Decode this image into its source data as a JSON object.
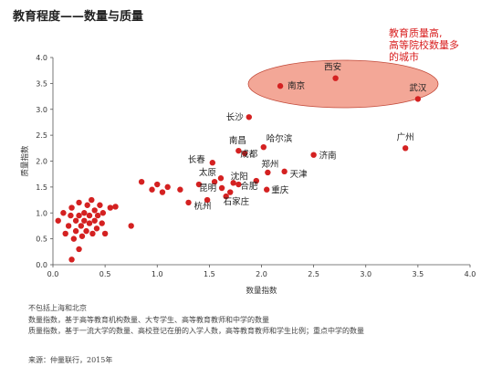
{
  "title": "教育程度——数量与质量",
  "notes": [
    "不包括上海和北京",
    "数量指数，基于高等教育机构数量、大专学生、高等教育教师和中学的数量",
    "质量指数，基于一流大学的数量、高校登记在册的入学人数，高等教育教师和学生比例；重点中学的数量"
  ],
  "source": "来源：仲量联行，2015年",
  "colors": {
    "dot": "#d42121",
    "highlight_fill": "#f3a797",
    "highlight_stroke": "#c24a3a",
    "highlight_text": "#d81e1e"
  },
  "chart_data": {
    "type": "scatter",
    "title": "教育程度——数量与质量",
    "xlabel": "数量指数",
    "ylabel": "质量指数",
    "xlim": [
      0,
      4.0
    ],
    "ylim": [
      0,
      4.0
    ],
    "xticks": [
      "0.0",
      "0.5",
      "1.0",
      "1.5",
      "2.0",
      "2.5",
      "3.0",
      "3.5",
      "4.0"
    ],
    "yticks": [
      "0.0",
      "0.5",
      "1.0",
      "1.5",
      "2.0",
      "2.5",
      "3.0",
      "3.5",
      "4.0"
    ],
    "grid": false,
    "highlight_note": [
      "教育质量高,",
      "高等院校数量多",
      "的城市"
    ],
    "labeled_points": [
      {
        "label": "南京",
        "x": 2.18,
        "y": 3.45
      },
      {
        "label": "西安",
        "x": 2.71,
        "y": 3.6
      },
      {
        "label": "武汉",
        "x": 3.5,
        "y": 3.2
      },
      {
        "label": "长沙",
        "x": 1.88,
        "y": 2.85
      },
      {
        "label": "广州",
        "x": 3.38,
        "y": 2.25
      },
      {
        "label": "南昌",
        "x": 1.78,
        "y": 2.2
      },
      {
        "label": "哈尔滨",
        "x": 2.02,
        "y": 2.27
      },
      {
        "label": "成都",
        "x": 1.84,
        "y": 2.15
      },
      {
        "label": "济南",
        "x": 2.5,
        "y": 2.12
      },
      {
        "label": "长春",
        "x": 1.53,
        "y": 1.97
      },
      {
        "label": "郑州",
        "x": 2.06,
        "y": 1.78
      },
      {
        "label": "天津",
        "x": 2.22,
        "y": 1.8
      },
      {
        "label": "太原",
        "x": 1.61,
        "y": 1.67
      },
      {
        "label": "沈阳",
        "x": 1.73,
        "y": 1.58
      },
      {
        "label": "昆明",
        "x": 1.62,
        "y": 1.48
      },
      {
        "label": "合肥",
        "x": 1.78,
        "y": 1.55
      },
      {
        "label": "重庆",
        "x": 2.05,
        "y": 1.45
      },
      {
        "label": "石家庄",
        "x": 1.66,
        "y": 1.32
      },
      {
        "label": "杭州",
        "x": 1.3,
        "y": 1.2
      }
    ],
    "unlabeled_points": [
      {
        "x": 0.05,
        "y": 0.85
      },
      {
        "x": 0.1,
        "y": 1.0
      },
      {
        "x": 0.12,
        "y": 0.6
      },
      {
        "x": 0.15,
        "y": 0.75
      },
      {
        "x": 0.17,
        "y": 0.95
      },
      {
        "x": 0.18,
        "y": 1.1
      },
      {
        "x": 0.2,
        "y": 0.5
      },
      {
        "x": 0.22,
        "y": 0.85
      },
      {
        "x": 0.22,
        "y": 0.65
      },
      {
        "x": 0.25,
        "y": 1.2
      },
      {
        "x": 0.25,
        "y": 0.95
      },
      {
        "x": 0.27,
        "y": 0.75
      },
      {
        "x": 0.28,
        "y": 0.55
      },
      {
        "x": 0.3,
        "y": 1.0
      },
      {
        "x": 0.3,
        "y": 0.85
      },
      {
        "x": 0.32,
        "y": 0.65
      },
      {
        "x": 0.33,
        "y": 1.15
      },
      {
        "x": 0.35,
        "y": 0.8
      },
      {
        "x": 0.35,
        "y": 0.95
      },
      {
        "x": 0.37,
        "y": 1.25
      },
      {
        "x": 0.38,
        "y": 0.6
      },
      {
        "x": 0.4,
        "y": 1.05
      },
      {
        "x": 0.4,
        "y": 0.85
      },
      {
        "x": 0.42,
        "y": 0.7
      },
      {
        "x": 0.43,
        "y": 0.95
      },
      {
        "x": 0.45,
        "y": 1.15
      },
      {
        "x": 0.47,
        "y": 0.8
      },
      {
        "x": 0.48,
        "y": 1.0
      },
      {
        "x": 0.5,
        "y": 0.6
      },
      {
        "x": 0.18,
        "y": 0.1
      },
      {
        "x": 0.25,
        "y": 0.3
      },
      {
        "x": 0.55,
        "y": 1.1
      },
      {
        "x": 0.6,
        "y": 1.12
      },
      {
        "x": 0.75,
        "y": 0.75
      },
      {
        "x": 0.85,
        "y": 1.6
      },
      {
        "x": 0.95,
        "y": 1.45
      },
      {
        "x": 1.0,
        "y": 1.55
      },
      {
        "x": 1.05,
        "y": 1.4
      },
      {
        "x": 1.1,
        "y": 1.5
      },
      {
        "x": 1.22,
        "y": 1.45
      },
      {
        "x": 1.4,
        "y": 1.55
      },
      {
        "x": 1.48,
        "y": 1.25
      },
      {
        "x": 1.55,
        "y": 1.6
      },
      {
        "x": 1.7,
        "y": 1.4
      },
      {
        "x": 1.95,
        "y": 1.62
      }
    ]
  }
}
